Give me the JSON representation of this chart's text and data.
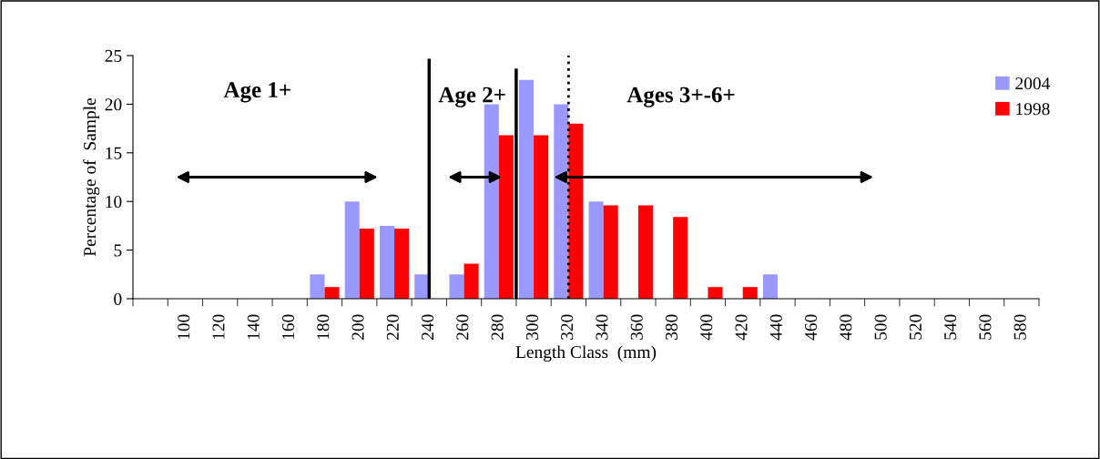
{
  "chart_data": {
    "type": "bar",
    "xlabel": "Length Class  (mm)",
    "ylabel": "Percentage of  Sample",
    "categories": [
      null,
      "100",
      "120",
      "140",
      "160",
      "180",
      "200",
      "220",
      "240",
      "260",
      "280",
      "300",
      "320",
      "340",
      "360",
      "380",
      "400",
      "420",
      "440",
      "460",
      "480",
      "500",
      "520",
      "540",
      "560",
      "580"
    ],
    "series": [
      {
        "name": "2004",
        "color": "#9999ff",
        "values": [
          0,
          0,
          0,
          0,
          0,
          2.5,
          10,
          7.5,
          2.5,
          2.5,
          20,
          22.5,
          20,
          10,
          0,
          0,
          0,
          0,
          2.5,
          0,
          0,
          0,
          0,
          0,
          0,
          0
        ]
      },
      {
        "name": "1998",
        "color": "#ff0000",
        "values": [
          0,
          0,
          0,
          0,
          0,
          1.2,
          7.2,
          7.2,
          0,
          3.6,
          16.8,
          16.8,
          18,
          9.6,
          9.6,
          8.4,
          1.2,
          1.2,
          0,
          0,
          0,
          0,
          0,
          0,
          0,
          0
        ]
      }
    ],
    "ylim": [
      0,
      25
    ],
    "yticks": [
      0,
      5,
      10,
      15,
      20,
      25
    ],
    "grid": false,
    "legend": "top right",
    "ref_lines": [
      {
        "axis": "x",
        "value": "240",
        "color": "#000000",
        "line_style": "solid"
      },
      {
        "axis": "x",
        "value": "320",
        "color": "#000000",
        "line_style": "dotted"
      }
    ],
    "annotations": [
      "Age 1+",
      "Age 2+",
      "Ages 3+-6+"
    ]
  }
}
